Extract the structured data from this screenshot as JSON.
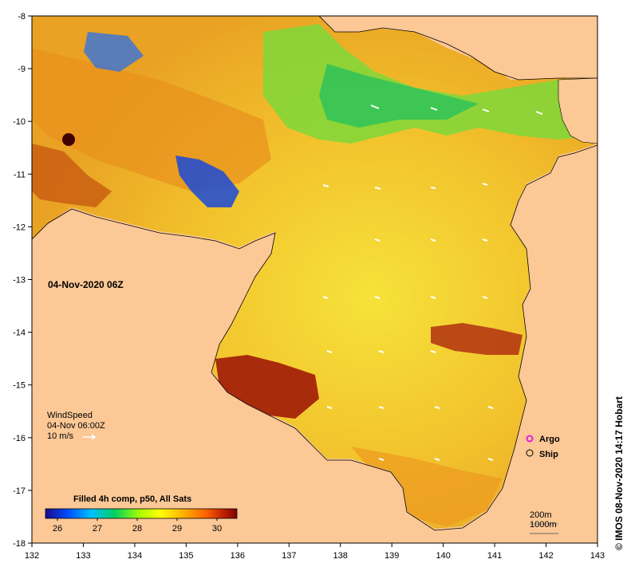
{
  "title": "04-Nov-2020 06Z",
  "credit": "© IMOS 08-Nov-2020 14:17 Hobart",
  "axes": {
    "x_ticks": [
      "132",
      "133",
      "134",
      "135",
      "136",
      "137",
      "138",
      "139",
      "140",
      "141",
      "142",
      "143"
    ],
    "y_ticks": [
      "-8",
      "-9",
      "-10",
      "-11",
      "-12",
      "-13",
      "-14",
      "-15",
      "-16",
      "-17",
      "-18"
    ],
    "lon_range": [
      132,
      143
    ],
    "lat_range": [
      -18,
      -8
    ]
  },
  "wind_legend": {
    "title": "WindSpeed",
    "time": "04-Nov 06:00Z",
    "scale": "10 m/s"
  },
  "markers": {
    "argo": "Argo",
    "ship": "Ship"
  },
  "depth_contours": {
    "shallow": "200m",
    "deep": "1000m"
  },
  "colorbar": {
    "title": "Filled 4h comp, p50, All Sats",
    "ticks": [
      "26",
      "27",
      "28",
      "29",
      "30"
    ],
    "range": [
      25.7,
      30.5
    ],
    "colors": [
      "#1a0a8c",
      "#0050ff",
      "#00c0ff",
      "#00d060",
      "#b0ff00",
      "#ffff00",
      "#ffb000",
      "#ff6000",
      "#c02000",
      "#800000"
    ]
  },
  "colors": {
    "land": "#fcc896",
    "coast": "#000000"
  }
}
